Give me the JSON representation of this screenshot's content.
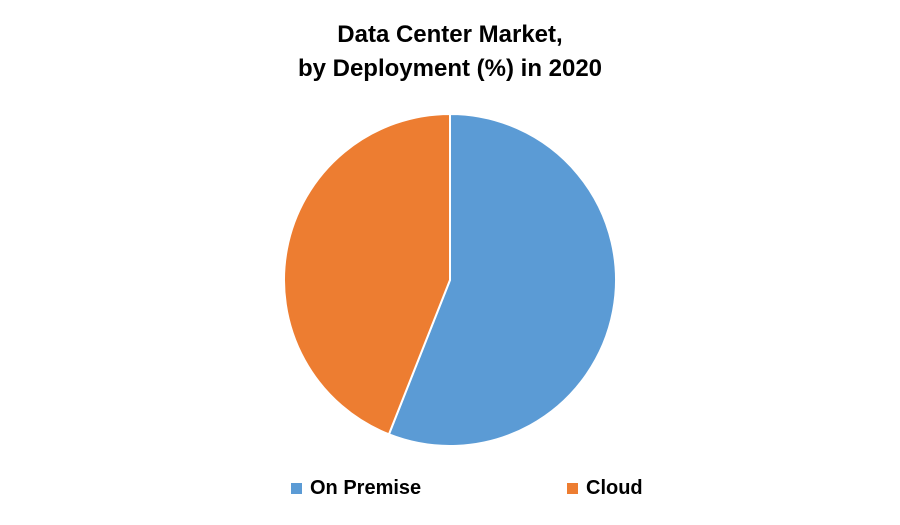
{
  "chart_data": {
    "type": "pie",
    "title": "Data Center Market, by Deployment (%) in 2020",
    "title_lines": [
      "Data Center Market,",
      "by Deployment (%) in 2020"
    ],
    "categories": [
      "On Premise",
      "Cloud"
    ],
    "values": [
      56,
      44
    ],
    "colors": [
      "#5B9BD5",
      "#ED7D31"
    ],
    "start_angle_deg": 0,
    "direction": "clockwise",
    "legend_position": "bottom",
    "data_labels": false
  },
  "legend": {
    "items": [
      {
        "label": "On Premise",
        "color": "#5B9BD5"
      },
      {
        "label": "Cloud",
        "color": "#ED7D31"
      }
    ]
  }
}
